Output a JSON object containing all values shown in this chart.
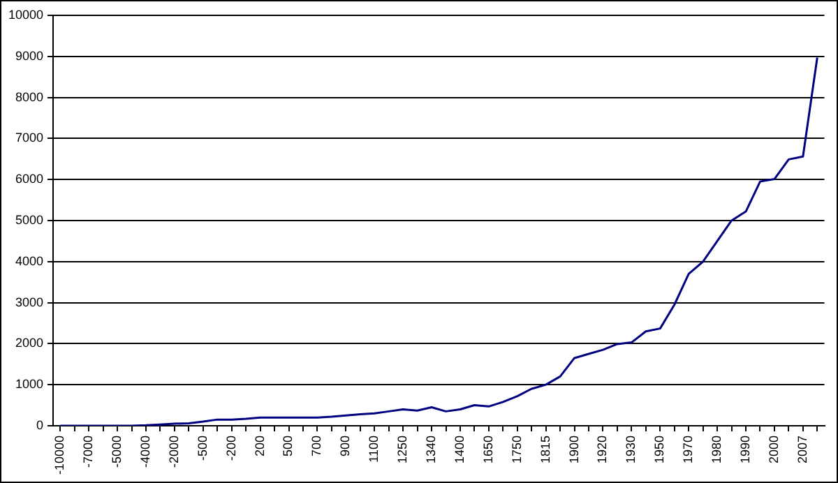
{
  "chart_data": {
    "type": "line",
    "categories": [
      "-10000",
      null,
      "-7000",
      null,
      "-5000",
      null,
      "-4000",
      null,
      "-2000",
      null,
      "-500",
      null,
      "-200",
      null,
      "200",
      null,
      "500",
      null,
      "700",
      null,
      "900",
      null,
      "1100",
      null,
      "1250",
      null,
      "1340",
      null,
      "1400",
      null,
      "1650",
      null,
      "1750",
      null,
      "1815",
      null,
      "1900",
      null,
      "1920",
      null,
      "1930",
      null,
      "1950",
      null,
      "1970",
      null,
      "1980",
      null,
      "1990",
      null,
      "2000",
      null,
      "2007",
      null
    ],
    "series": [
      {
        "color": "#000080",
        "values": [
          0,
          0,
          0,
          0,
          0,
          0,
          10,
          30,
          50,
          60,
          100,
          150,
          150,
          170,
          200,
          200,
          200,
          200,
          200,
          220,
          250,
          280,
          300,
          350,
          400,
          370,
          450,
          350,
          400,
          500,
          470,
          580,
          720,
          900,
          1000,
          1200,
          1650,
          1750,
          1850,
          1990,
          2030,
          2300,
          2370,
          2950,
          3700,
          4000,
          4500,
          5000,
          5220,
          5950,
          6010,
          6490,
          6560,
          8970
        ]
      }
    ],
    "ylim": [
      0,
      10000
    ],
    "yticks": [
      0,
      1000,
      2000,
      3000,
      4000,
      5000,
      6000,
      7000,
      8000,
      9000,
      10000
    ],
    "grid": "y",
    "legend": false,
    "marker": "none",
    "line_style": "solid"
  }
}
